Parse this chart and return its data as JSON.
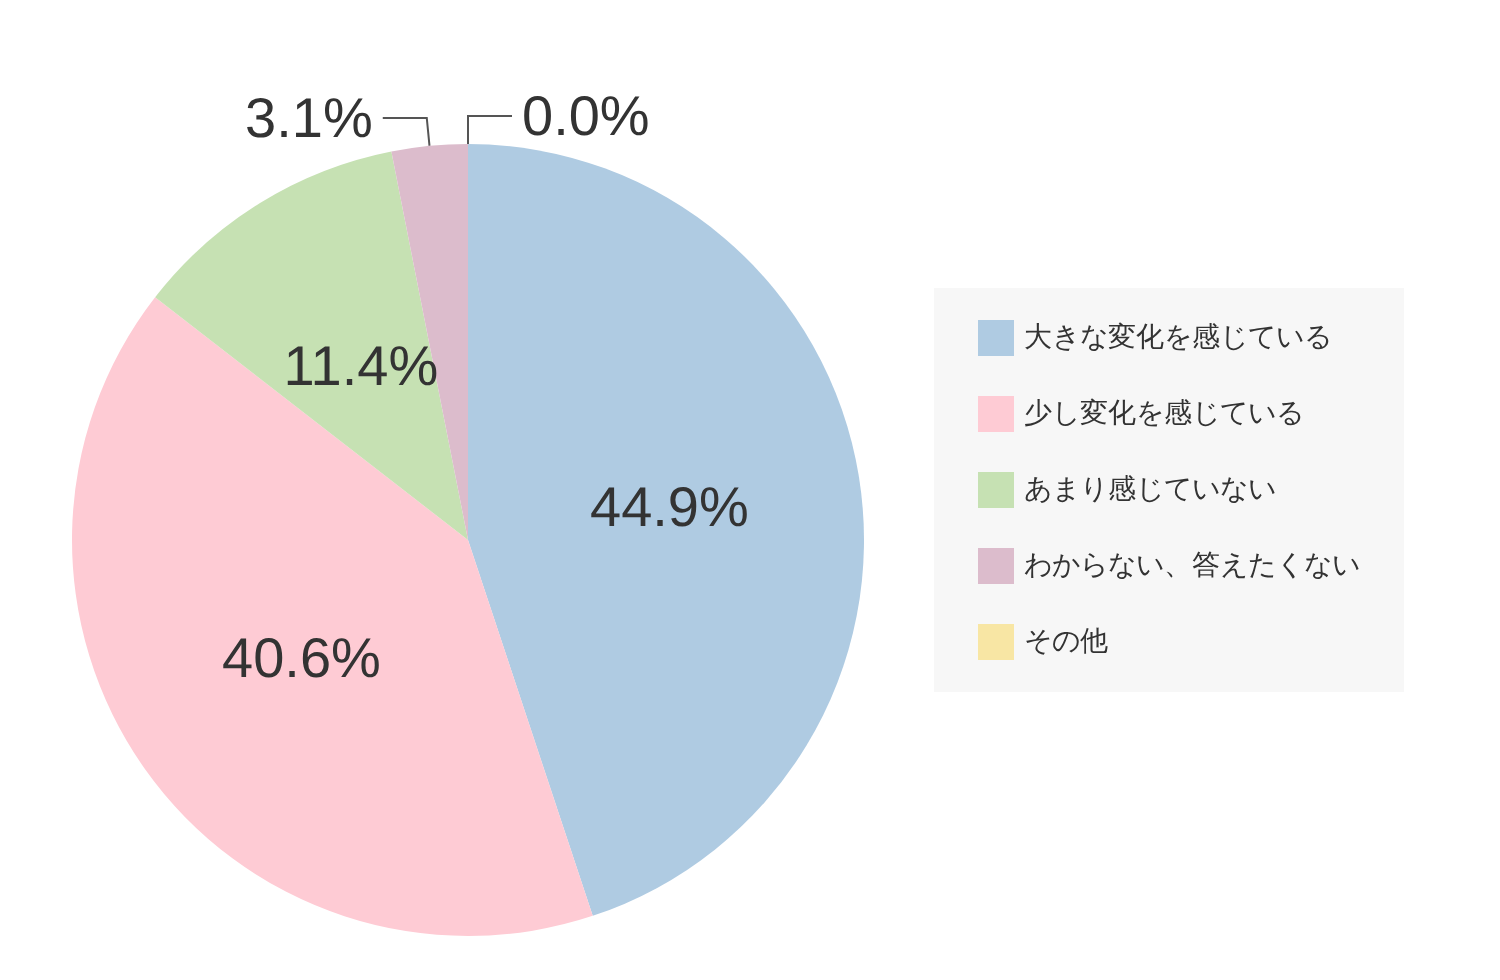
{
  "chart_data": {
    "type": "pie",
    "categories": [
      "大きな変化を感じている",
      "少し変化を感じている",
      "あまり感じていない",
      "わからない、答えたくない",
      "その他"
    ],
    "values": [
      44.9,
      40.6,
      11.4,
      3.1,
      0.0
    ],
    "colors": [
      "#afcbe2",
      "#fecbd4",
      "#c6e1b3",
      "#dcbccc",
      "#f8e6a4"
    ],
    "value_labels": [
      "44.9%",
      "40.6%",
      "11.4%",
      "3.1%",
      "0.0%"
    ],
    "legend": "right"
  }
}
